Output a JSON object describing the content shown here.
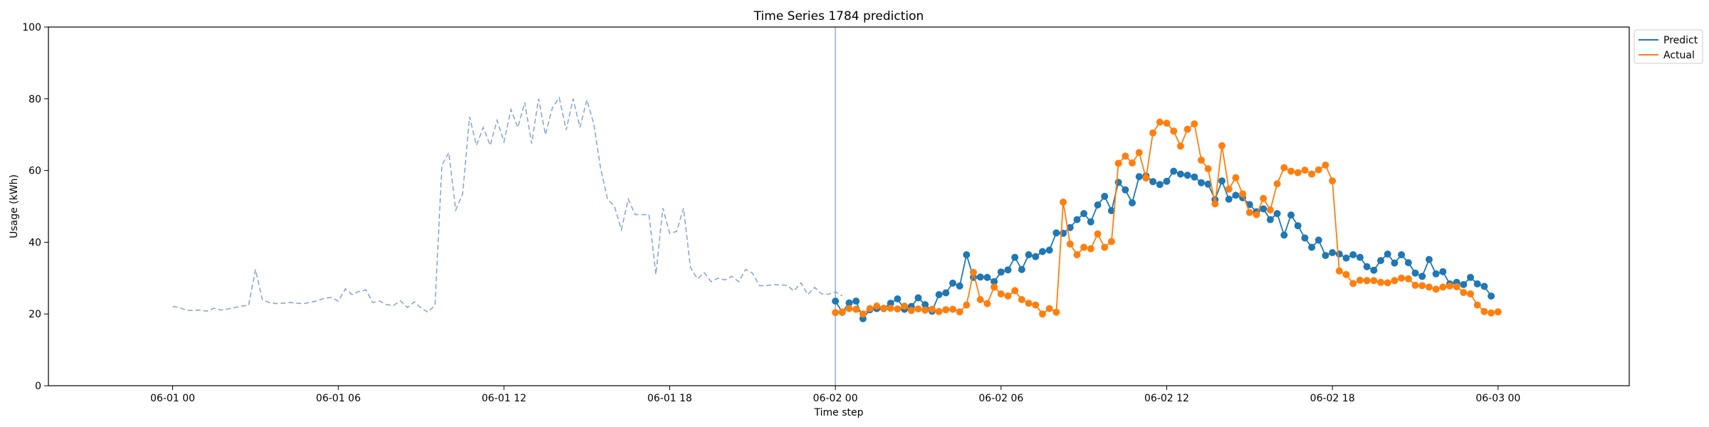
{
  "chart_data": {
    "type": "line",
    "title": "Time Series 1784 prediction",
    "xlabel": "Time step",
    "ylabel": "Usage (kWh)",
    "ylim": [
      0,
      100
    ],
    "yticks": [
      0,
      20,
      40,
      60,
      80,
      100
    ],
    "xlim_hours": [
      -4.5,
      52.75
    ],
    "xticks": [
      {
        "h": 0,
        "label": "06-01 00"
      },
      {
        "h": 6,
        "label": "06-01 06"
      },
      {
        "h": 12,
        "label": "06-01 12"
      },
      {
        "h": 18,
        "label": "06-01 18"
      },
      {
        "h": 24,
        "label": "06-02 00"
      },
      {
        "h": 30,
        "label": "06-02 06"
      },
      {
        "h": 36,
        "label": "06-02 12"
      },
      {
        "h": 42,
        "label": "06-02 18"
      },
      {
        "h": 48,
        "label": "06-03 00"
      }
    ],
    "forecast_start_h": 24,
    "grid": false,
    "legend_position": "upper-right outside",
    "step_hours": 0.25,
    "series": [
      {
        "key": "history",
        "color": "#8aa8d0",
        "style": "dashed",
        "start_h": 0,
        "values": [
          22.1,
          21.8,
          21.0,
          21.0,
          21.1,
          20.8,
          21.6,
          21.1,
          21.4,
          21.8,
          22.2,
          22.4,
          32.4,
          23.9,
          23.2,
          22.9,
          23.0,
          23.2,
          23.0,
          22.9,
          23.3,
          23.7,
          24.4,
          24.6,
          23.6,
          27.0,
          25.4,
          26.3,
          26.7,
          23.2,
          23.6,
          22.6,
          22.4,
          23.7,
          21.8,
          23.4,
          21.6,
          20.5,
          22.5,
          61.5,
          65.0,
          49.0,
          53.5,
          75.0,
          67.0,
          72.0,
          67.0,
          74.0,
          68.0,
          77.0,
          72.0,
          79.0,
          67.5,
          80.0,
          70.0,
          77.5,
          80.3,
          71.3,
          80.0,
          72.0,
          79.7,
          73.0,
          60.5,
          52.0,
          50.0,
          43.5,
          52.0,
          47.7,
          47.7,
          47.7,
          31.0,
          49.5,
          42.5,
          43.0,
          49.5,
          33.0,
          29.8,
          31.5,
          29.0,
          30.0,
          29.5,
          30.5,
          29.0,
          32.4,
          31.4,
          27.9,
          27.9,
          28.2,
          28.1,
          28.0,
          26.4,
          28.7,
          25.4,
          27.4,
          25.6,
          25.5,
          26.2,
          25.0
        ]
      },
      {
        "key": "predict",
        "name": "Predict",
        "color": "#1f77b4",
        "style": "solid-markers",
        "start_h": 24,
        "values": [
          23.6,
          20.5,
          23.1,
          23.6,
          18.7,
          21.2,
          21.5,
          21.5,
          23.0,
          24.2,
          21.3,
          22.1,
          24.5,
          22.6,
          20.8,
          25.4,
          25.9,
          28.6,
          27.8,
          36.5,
          30.2,
          30.3,
          30.2,
          29.0,
          31.7,
          32.3,
          35.8,
          32.4,
          36.5,
          36.0,
          37.4,
          37.8,
          42.6,
          42.5,
          44.1,
          46.3,
          48.0,
          45.7,
          50.4,
          52.8,
          48.8,
          56.7,
          54.6,
          51.0,
          58.3,
          58.5,
          56.9,
          56.1,
          57.0,
          59.8,
          59.0,
          58.7,
          58.2,
          56.6,
          56.2,
          51.9,
          57.1,
          52.0,
          53.1,
          52.4,
          50.5,
          48.5,
          49.3,
          46.3,
          48.0,
          42.0,
          47.6,
          44.6,
          41.2,
          38.6,
          40.6,
          36.3,
          37.1,
          36.7,
          35.6,
          36.5,
          35.8,
          33.2,
          32.2,
          34.9,
          36.7,
          34.2,
          36.5,
          34.3,
          31.4,
          30.5,
          35.2,
          31.2,
          31.8,
          28.4,
          28.8,
          28.2,
          30.2,
          28.4,
          27.7,
          25.0
        ]
      },
      {
        "key": "actual",
        "name": "Actual",
        "color": "#ff7f0e",
        "style": "solid-markers",
        "start_h": 24,
        "values": [
          20.4,
          20.6,
          21.5,
          21.3,
          20.0,
          21.5,
          22.2,
          21.6,
          21.6,
          21.4,
          22.2,
          21.0,
          21.4,
          21.1,
          21.3,
          20.7,
          21.2,
          21.3,
          20.6,
          22.5,
          31.6,
          24.0,
          22.9,
          27.5,
          25.6,
          25.0,
          26.5,
          24.0,
          23.0,
          22.5,
          20.0,
          21.5,
          20.5,
          51.2,
          39.5,
          36.5,
          38.6,
          38.2,
          42.3,
          38.6,
          40.2,
          62.0,
          64.0,
          62.1,
          65.0,
          57.9,
          70.5,
          73.5,
          73.2,
          71.0,
          66.8,
          71.5,
          73.0,
          62.9,
          60.5,
          50.7,
          66.9,
          54.8,
          58.0,
          53.5,
          48.3,
          47.7,
          52.2,
          49.0,
          56.3,
          60.8,
          59.8,
          59.4,
          60.1,
          59.0,
          60.2,
          61.5,
          57.1,
          32.0,
          31.0,
          28.5,
          29.4,
          29.3,
          29.3,
          28.8,
          28.7,
          29.3,
          30.0,
          29.8,
          28.0,
          27.9,
          27.5,
          26.9,
          27.5,
          27.8,
          27.6,
          26.0,
          25.6,
          22.5,
          20.7,
          20.3,
          20.6
        ]
      }
    ]
  }
}
